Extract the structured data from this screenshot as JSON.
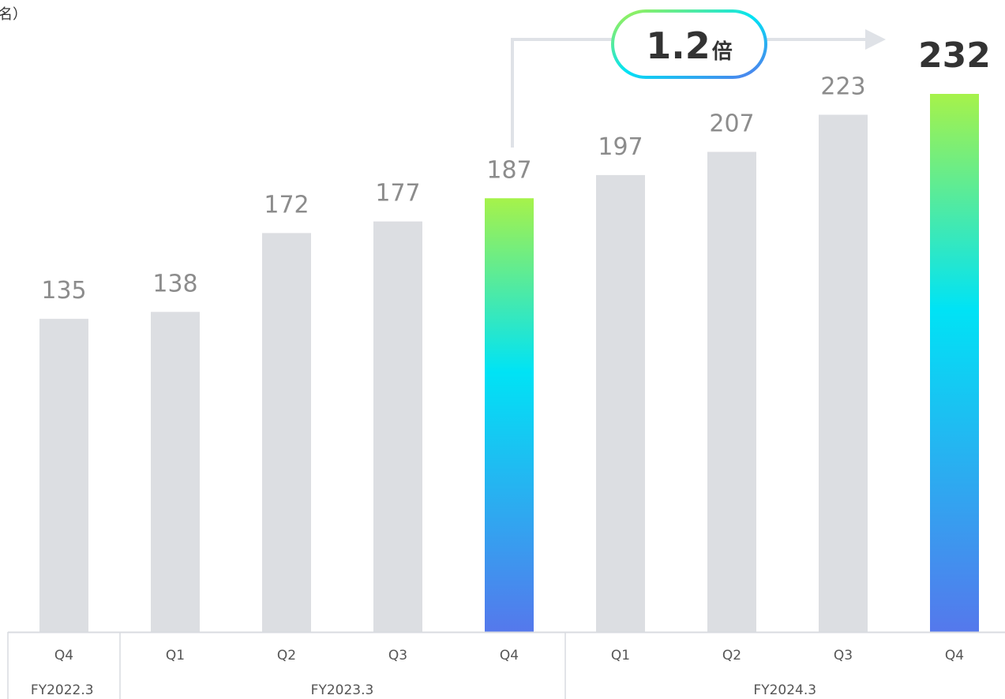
{
  "unit_label": "名）",
  "chart_data": {
    "type": "bar",
    "title": "",
    "xlabel": "",
    "ylabel": "",
    "categories": [
      "Q4",
      "Q1",
      "Q2",
      "Q3",
      "Q4",
      "Q1",
      "Q2",
      "Q3",
      "Q4"
    ],
    "values": [
      135,
      138,
      172,
      177,
      187,
      197,
      207,
      223,
      232
    ],
    "value_labels": [
      "135",
      "138",
      "172",
      "177",
      "187",
      "197",
      "207",
      "223",
      "232"
    ],
    "highlighted_indices": [
      4,
      8
    ],
    "bold_label_index": 8,
    "groups": [
      {
        "label": "FY2022.3",
        "start": 0,
        "end": 0
      },
      {
        "label": "FY2023.3",
        "start": 1,
        "end": 4
      },
      {
        "label": "FY2024.3",
        "start": 5,
        "end": 8
      }
    ],
    "growth_annotation": {
      "from_index": 4,
      "to_index": 8,
      "value": "1.2",
      "suffix": "倍"
    },
    "ylim": [
      0,
      232
    ],
    "grid": false,
    "colors": {
      "bar": "#dcdee2",
      "gradient_top": "#a6f24a",
      "gradient_mid": "#00e3f5",
      "gradient_bottom": "#5578ec",
      "label": "#8c8c8c",
      "label_bold": "#333333",
      "axis_text": "#555555",
      "axis_line": "#d9dbe0",
      "arrow": "#dfe2e7"
    }
  }
}
